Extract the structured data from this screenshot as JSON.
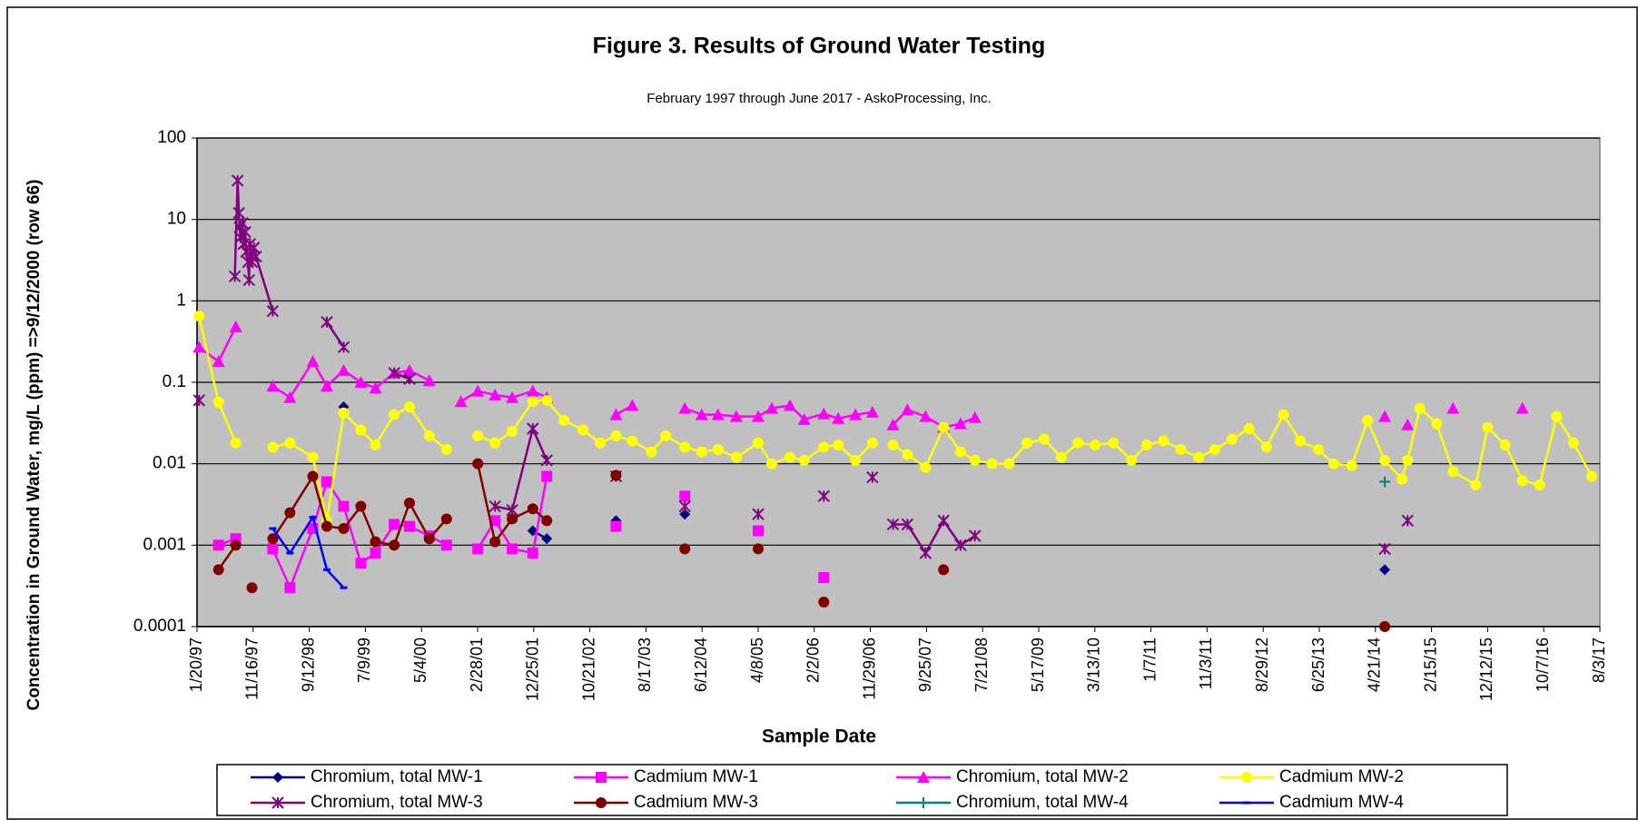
{
  "chart_data": {
    "type": "line",
    "title": "Figure 3. Results of Ground Water Testing",
    "subtitle": "February 1997 through June 2017 - AskoProcessing, Inc.",
    "x_label": "Sample Date",
    "y_label": "Concentration in Ground Water, mg/L (ppm) =>9/12/2000 (row 66)",
    "log_y": true,
    "grid": true,
    "legend": "bottom",
    "ylim": [
      0.0001,
      100
    ],
    "yticks": [
      0.0001,
      0.001,
      0.01,
      0.1,
      1,
      10,
      100
    ],
    "xlim": [
      "1/20/97",
      "8/3/17"
    ],
    "xticks": [
      "1/20/97",
      "11/16/97",
      "9/12/98",
      "7/9/99",
      "5/4/00",
      "2/28/01",
      "12/25/01",
      "10/21/02",
      "8/17/03",
      "6/12/04",
      "4/8/05",
      "2/2/06",
      "11/29/06",
      "9/25/07",
      "7/21/08",
      "5/17/09",
      "3/13/10",
      "1/7/11",
      "11/3/11",
      "8/29/12",
      "6/25/13",
      "4/21/14",
      "2/15/15",
      "12/12/15",
      "10/7/16",
      "8/3/17"
    ],
    "series": [
      {
        "name": "Chromium, total MW-1",
        "color": "#000080",
        "marker": "diamond",
        "x": [
          "3/15/99",
          null,
          "12/20/01",
          "3/5/02",
          null,
          "3/10/03",
          null,
          "3/12/04",
          null,
          "6/10/14"
        ],
        "values": [
          0.05,
          null,
          0.0015,
          0.0012,
          null,
          0.002,
          null,
          0.0024,
          null,
          0.0005
        ]
      },
      {
        "name": "Cadmium MW-1",
        "color": "#ff00ff",
        "marker": "square",
        "x": [
          "5/15/97",
          "8/15/97",
          null,
          "3/1/98",
          "6/1/98",
          "10/1/98",
          "12/15/98",
          "3/15/99",
          "6/15/99",
          "9/1/99",
          "12/10/99",
          "3/1/00",
          "6/15/00",
          "9/15/00",
          null,
          "3/1/01",
          "6/1/01",
          "9/1/01",
          "12/20/01",
          "3/5/02",
          null,
          "3/10/03",
          null,
          "3/12/04",
          null,
          "4/8/05",
          null,
          "3/25/06"
        ],
        "values": [
          0.001,
          0.0012,
          null,
          0.0009,
          0.0003,
          0.0016,
          0.006,
          0.003,
          0.0006,
          0.0008,
          0.0018,
          0.0017,
          0.0013,
          0.001,
          null,
          0.0009,
          0.002,
          0.0009,
          0.0008,
          0.007,
          null,
          0.0017,
          null,
          0.004,
          null,
          0.0015,
          null,
          0.0004
        ]
      },
      {
        "name": "Chromium, total MW-2",
        "color": "#ff00ff",
        "marker": "triangle",
        "x": [
          "1/31/97",
          "5/15/97",
          "8/15/97",
          null,
          "3/1/98",
          "6/1/98",
          "10/1/98",
          "12/15/98",
          "3/15/99",
          "6/15/99",
          "9/1/99",
          "12/10/99",
          "3/1/00",
          "6/15/00",
          null,
          "12/1/00",
          "3/1/01",
          "6/1/01",
          "9/1/01",
          "12/20/01",
          "3/5/02",
          null,
          "3/10/03",
          "6/5/03",
          null,
          "3/12/04",
          "6/10/04",
          "9/5/04",
          "12/12/04",
          "4/8/05",
          "6/20/05",
          "9/25/05",
          "12/10/05",
          "3/25/06",
          "6/10/06",
          "9/10/06",
          "12/10/06",
          null,
          "3/30/07",
          "6/15/07",
          "9/20/07",
          "12/25/07",
          "3/25/08",
          "6/10/08",
          null,
          "6/10/14",
          null,
          "10/10/14",
          null,
          "6/10/15",
          null,
          "6/15/16"
        ],
        "values": [
          0.27,
          0.18,
          0.48,
          null,
          0.09,
          0.065,
          0.18,
          0.09,
          0.14,
          0.1,
          0.085,
          0.13,
          0.14,
          0.105,
          null,
          0.058,
          0.078,
          0.07,
          0.065,
          0.078,
          0.065,
          null,
          0.04,
          0.052,
          null,
          0.048,
          0.04,
          0.04,
          0.038,
          0.038,
          0.048,
          0.052,
          0.035,
          0.041,
          0.036,
          0.04,
          0.043,
          null,
          0.03,
          0.046,
          0.038,
          0.028,
          0.031,
          0.037,
          null,
          0.038,
          null,
          0.03,
          null,
          0.048,
          null,
          0.048
        ]
      },
      {
        "name": "Cadmium MW-2",
        "color": "#ffff00",
        "marker": "circle",
        "x": [
          "1/31/97",
          "5/15/97",
          "8/15/97",
          null,
          "3/1/98",
          "6/1/98",
          "10/1/98",
          "12/15/98",
          "3/15/99",
          "6/15/99",
          "9/1/99",
          "12/10/99",
          "3/1/00",
          "6/15/00",
          "9/15/00",
          null,
          "3/1/01",
          "6/1/01",
          "9/1/01",
          "12/20/01",
          "3/5/02",
          "6/5/02",
          "9/15/02",
          "12/15/02",
          "3/10/03",
          "6/5/03",
          "9/15/03",
          "12/1/03",
          "3/12/04",
          "6/10/04",
          "9/5/04",
          "12/12/04",
          "4/8/05",
          "6/20/05",
          "9/25/05",
          "12/10/05",
          "3/25/06",
          "6/10/06",
          "9/10/06",
          "12/10/06",
          null,
          "3/30/07",
          "6/15/07",
          "9/20/07",
          "12/25/07",
          "3/25/08",
          "6/10/08",
          "9/10/08",
          "12/10/08",
          "3/15/09",
          "6/15/09",
          "9/15/09",
          "12/13/09",
          "3/15/10",
          "6/20/10",
          "9/25/10",
          "12/15/10",
          "3/15/11",
          "6/15/11",
          "9/20/11",
          "12/15/11",
          "3/15/12",
          "6/15/12",
          "9/15/12",
          "12/15/12",
          "3/15/13",
          "6/20/13",
          "9/10/13",
          "12/15/13",
          "3/10/14",
          "6/10/14",
          "9/10/14",
          "10/10/14",
          "12/15/14",
          "3/15/15",
          "6/10/15",
          "10/10/15",
          "12/12/15",
          "3/15/16",
          "6/15/16",
          "9/15/16",
          "12/15/16",
          "3/15/17",
          "6/20/17"
        ],
        "values": [
          0.65,
          0.057,
          0.018,
          null,
          0.016,
          0.018,
          0.012,
          0.002,
          0.042,
          0.026,
          0.017,
          0.04,
          0.05,
          0.022,
          0.015,
          null,
          0.022,
          0.018,
          0.025,
          0.058,
          0.06,
          0.034,
          0.026,
          0.018,
          0.022,
          0.019,
          0.014,
          0.022,
          0.016,
          0.014,
          0.015,
          0.012,
          0.018,
          0.01,
          0.012,
          0.011,
          0.016,
          0.017,
          0.011,
          0.018,
          null,
          0.017,
          0.013,
          0.009,
          0.028,
          0.014,
          0.011,
          0.01,
          0.01,
          0.018,
          0.02,
          0.012,
          0.018,
          0.017,
          0.018,
          0.011,
          0.017,
          0.019,
          0.015,
          0.012,
          0.015,
          0.02,
          0.027,
          0.016,
          0.04,
          0.019,
          0.015,
          0.01,
          0.0095,
          0.034,
          0.011,
          0.0065,
          0.011,
          0.048,
          0.031,
          0.008,
          0.0055,
          0.028,
          0.017,
          0.0062,
          0.0055,
          0.038,
          0.018,
          0.007
        ]
      },
      {
        "name": "Chromium, total MW-3",
        "color": "#800080",
        "marker": "star",
        "x": [
          "1/31/97",
          null,
          "8/10/97",
          "8/25/97",
          "9/1/97",
          "9/5/97",
          "9/10/97",
          "9/20/97",
          "9/25/97",
          "10/5/97",
          "10/10/97",
          "10/20/97",
          "10/25/97",
          "10/30/97",
          "11/10/97",
          "11/20/97",
          "12/1/97",
          "3/1/98",
          null,
          "12/15/98",
          "3/15/99",
          null,
          "12/10/99",
          "3/1/00",
          null,
          "6/1/01",
          "9/1/01",
          "12/20/01",
          "3/5/02",
          null,
          "3/10/03",
          null,
          "3/12/04",
          null,
          "4/8/05",
          null,
          "3/25/06",
          null,
          "12/10/06",
          null,
          "3/30/07",
          "6/15/07",
          "9/20/07",
          "12/25/07",
          "3/25/08",
          "6/10/08",
          null,
          "6/10/14",
          null,
          "10/10/14"
        ],
        "values": [
          0.06,
          null,
          2,
          30,
          12,
          8,
          6,
          9,
          5,
          7,
          4,
          3,
          1.8,
          5,
          3,
          4.5,
          3.5,
          0.75,
          null,
          0.55,
          0.27,
          null,
          0.13,
          0.11,
          null,
          0.003,
          0.0027,
          0.027,
          0.011,
          null,
          0.007,
          null,
          0.003,
          null,
          0.0024,
          null,
          0.004,
          null,
          0.0068,
          null,
          0.0018,
          0.0018,
          0.0008,
          0.002,
          0.001,
          0.0013,
          null,
          0.0009,
          null,
          0.002
        ]
      },
      {
        "name": "Cadmium MW-3",
        "color": "#800000",
        "marker": "circle",
        "x": [
          "5/15/97",
          "8/15/97",
          null,
          "11/10/97",
          null,
          "3/1/98",
          "6/1/98",
          "10/1/98",
          "12/15/98",
          "3/15/99",
          "6/15/99",
          "9/1/99",
          "12/10/99",
          "3/1/00",
          "6/15/00",
          "9/15/00",
          null,
          "3/1/01",
          "6/1/01",
          "9/1/01",
          "12/20/01",
          "3/5/02",
          null,
          "3/10/03",
          null,
          "3/12/04",
          null,
          "4/8/05",
          null,
          "3/25/06",
          null,
          "12/25/07",
          null,
          "6/10/14"
        ],
        "values": [
          0.0005,
          0.001,
          null,
          0.0003,
          null,
          0.0012,
          0.0025,
          0.007,
          0.0017,
          0.0016,
          0.003,
          0.0011,
          0.001,
          0.0033,
          0.0012,
          0.0021,
          null,
          0.01,
          0.0011,
          0.0021,
          0.0028,
          0.002,
          null,
          0.0072,
          null,
          0.0009,
          null,
          0.0009,
          null,
          0.0002,
          null,
          0.0005,
          null,
          0.0001
        ]
      },
      {
        "name": "Chromium, total MW-4",
        "color": "#008080",
        "marker": "plus",
        "x": [
          "6/10/14"
        ],
        "values": [
          0.006
        ]
      },
      {
        "name": "Cadmium MW-4",
        "color": "#0000ff",
        "marker": "dash",
        "x": [
          "3/1/98",
          "6/1/98",
          "10/1/98",
          "12/15/98",
          "3/15/99"
        ],
        "values": [
          0.0016,
          0.0008,
          0.0022,
          0.0005,
          0.0003
        ]
      }
    ]
  }
}
